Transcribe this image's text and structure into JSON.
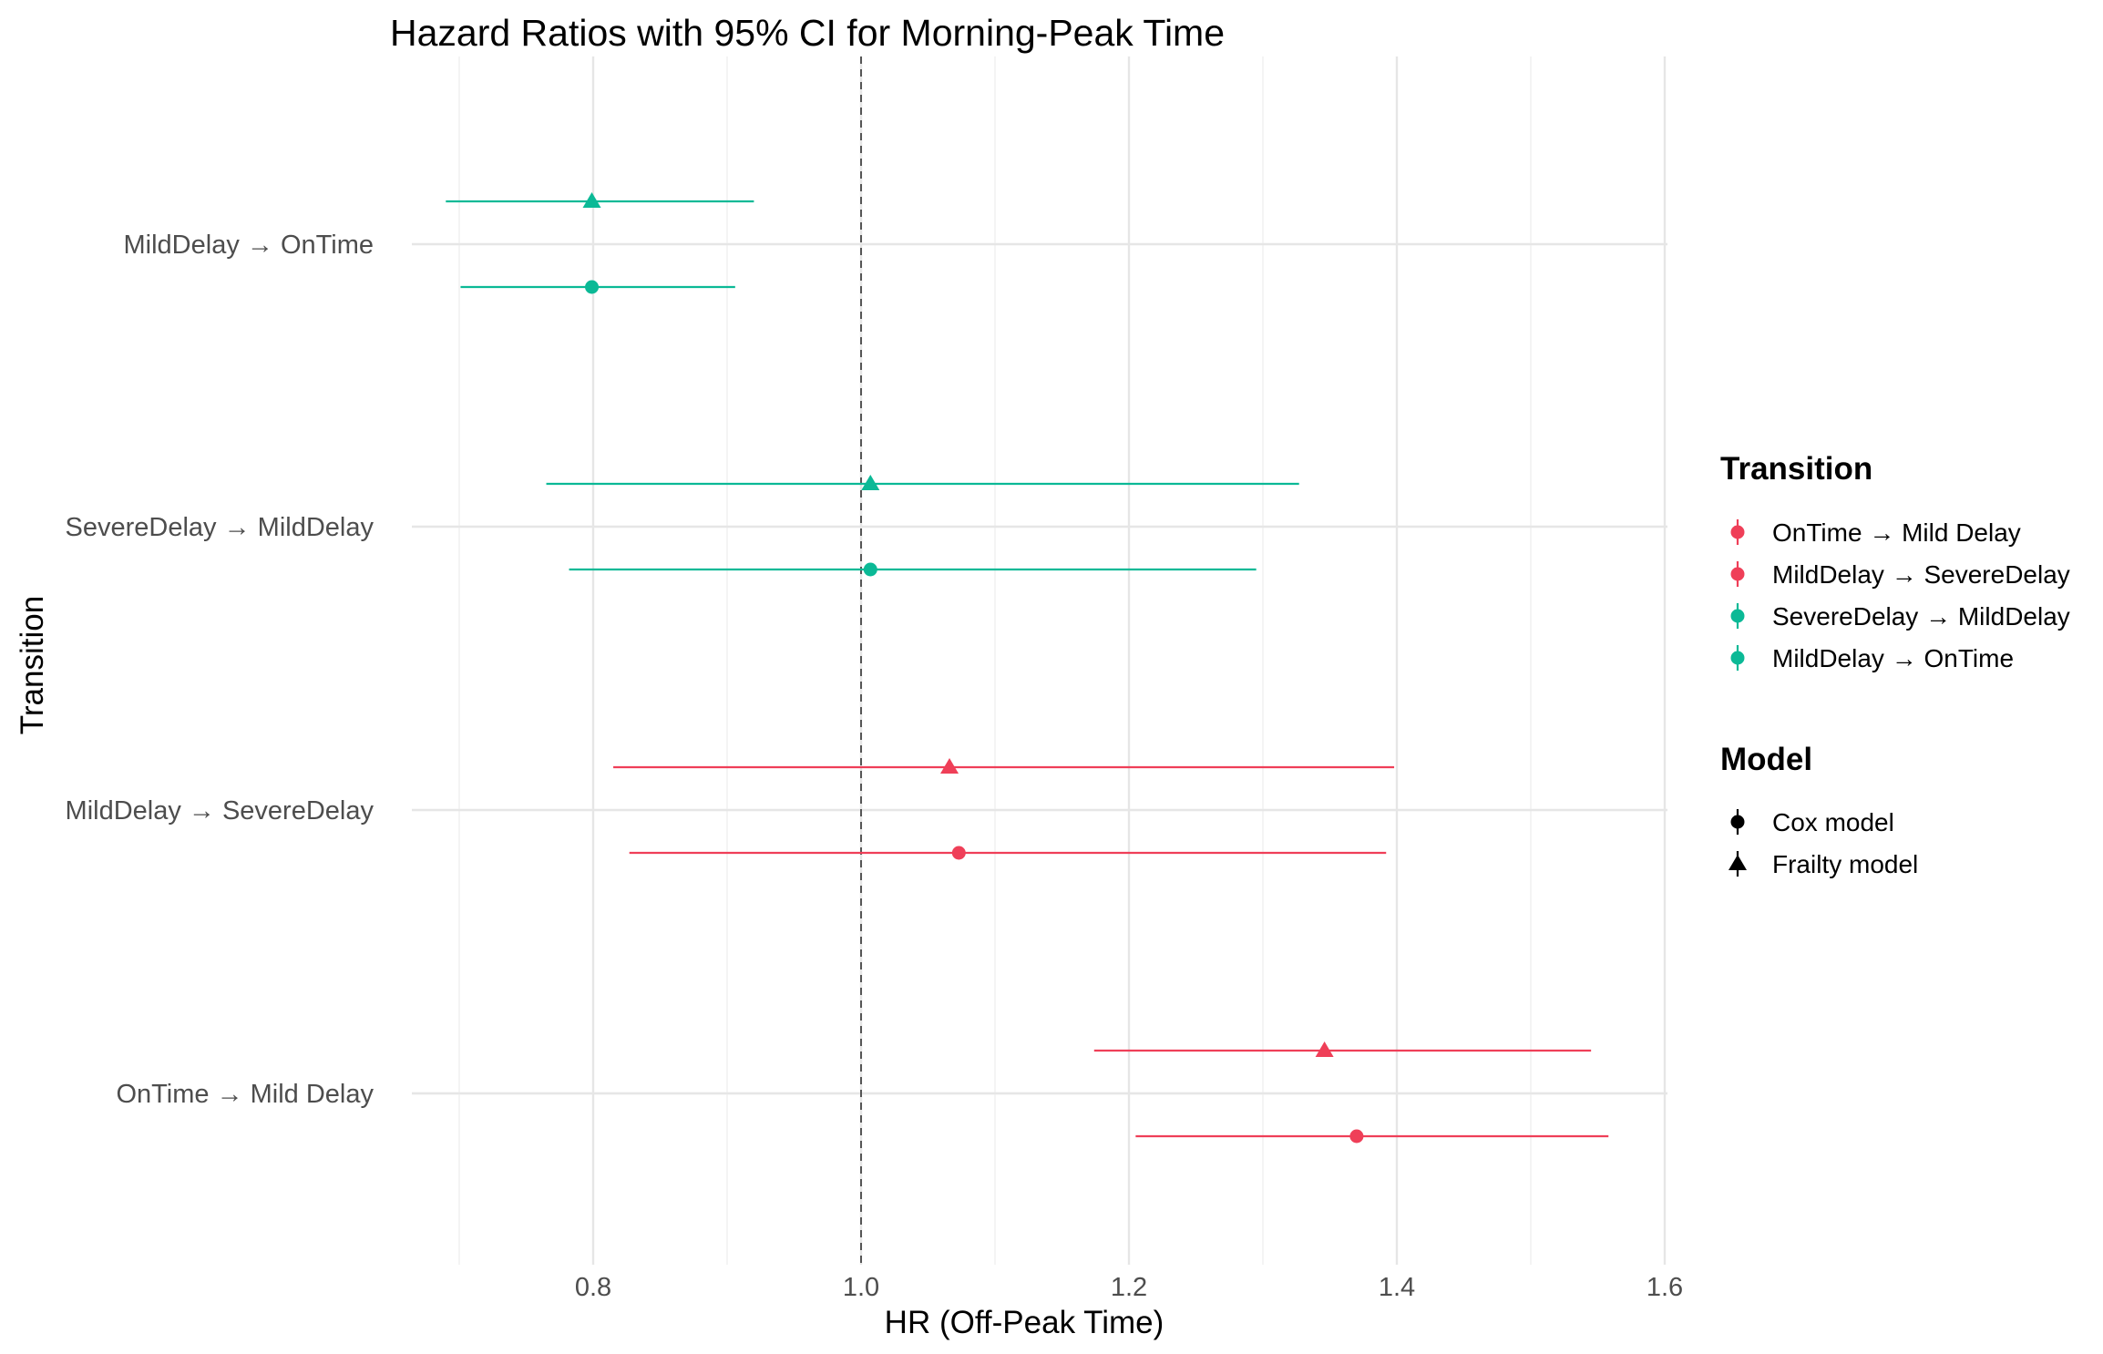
{
  "chart_data": {
    "type": "scatter",
    "subtype": "forest-plot",
    "title": "Hazard Ratios with 95% CI for Morning-Peak Time",
    "xlabel": "HR (Off-Peak Time)",
    "ylabel": "Transition",
    "xlim": [
      0.6,
      1.6
    ],
    "xticks": [
      0.8,
      1.0,
      1.2,
      1.4,
      1.6
    ],
    "xtick_labels": [
      "0.8",
      "1.0",
      "1.2",
      "1.4",
      "1.6"
    ],
    "reference_line": 1.0,
    "grid": true,
    "categories": [
      "OnTime → Mild Delay",
      "MildDelay → SevereDelay",
      "SevereDelay → MildDelay",
      "MildDelay → OnTime"
    ],
    "series": [
      {
        "name": "Cox model",
        "shape": "circle",
        "points": [
          {
            "category": "OnTime → Mild Delay",
            "hr": 1.37,
            "lower": 1.205,
            "upper": 1.558
          },
          {
            "category": "MildDelay → SevereDelay",
            "hr": 1.073,
            "lower": 0.827,
            "upper": 1.392
          },
          {
            "category": "SevereDelay → MildDelay",
            "hr": 1.007,
            "lower": 0.782,
            "upper": 1.295
          },
          {
            "category": "MildDelay → OnTime",
            "hr": 0.799,
            "lower": 0.701,
            "upper": 0.906
          }
        ]
      },
      {
        "name": "Frailty model",
        "shape": "triangle",
        "points": [
          {
            "category": "OnTime → Mild Delay",
            "hr": 1.346,
            "lower": 1.174,
            "upper": 1.545
          },
          {
            "category": "MildDelay → SevereDelay",
            "hr": 1.066,
            "lower": 0.815,
            "upper": 1.398
          },
          {
            "category": "SevereDelay → MildDelay",
            "hr": 1.007,
            "lower": 0.765,
            "upper": 1.327
          },
          {
            "category": "MildDelay → OnTime",
            "hr": 0.799,
            "lower": 0.69,
            "upper": 0.92
          }
        ]
      }
    ],
    "colors": {
      "OnTime → Mild Delay": "#ef3f58",
      "MildDelay → SevereDelay": "#ef3f58",
      "SevereDelay → MildDelay": "#0bb996",
      "MildDelay → OnTime": "#0bb996"
    },
    "legends": {
      "position": "right",
      "transition": {
        "title": "Transition",
        "entries": [
          "OnTime → Mild Delay",
          "MildDelay → SevereDelay",
          "SevereDelay → MildDelay",
          "MildDelay → OnTime"
        ]
      },
      "model": {
        "title": "Model",
        "entries": [
          "Cox model",
          "Frailty model"
        ]
      }
    }
  }
}
